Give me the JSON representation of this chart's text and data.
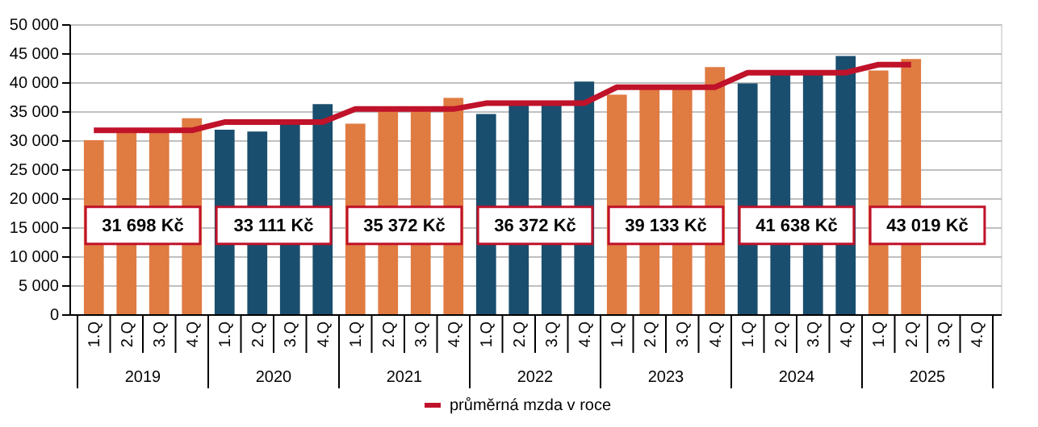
{
  "chart_data": {
    "type": "bar",
    "categories": [
      "1.Q",
      "2.Q",
      "3.Q",
      "4.Q",
      "1.Q",
      "2.Q",
      "3.Q",
      "4.Q",
      "1.Q",
      "2.Q",
      "3.Q",
      "4.Q",
      "1.Q",
      "2.Q",
      "3.Q",
      "4.Q",
      "1.Q",
      "2.Q",
      "3.Q",
      "4.Q",
      "1.Q",
      "2.Q",
      "3.Q",
      "4.Q",
      "1.Q",
      "2.Q",
      "3.Q",
      "4.Q"
    ],
    "series": [
      {
        "colors": [
          "#e07b42",
          "#e07b42",
          "#e07b42",
          "#e07b42",
          "#1a4e6e",
          "#1a4e6e",
          "#1a4e6e",
          "#1a4e6e",
          "#e07b42",
          "#e07b42",
          "#e07b42",
          "#e07b42",
          "#1a4e6e",
          "#1a4e6e",
          "#1a4e6e",
          "#1a4e6e",
          "#e07b42",
          "#e07b42",
          "#e07b42",
          "#e07b42",
          "#1a4e6e",
          "#1a4e6e",
          "#1a4e6e",
          "#1a4e6e",
          "#e07b42",
          "#e07b42",
          "#e07b42",
          "#e07b42"
        ],
        "values": [
          30000,
          31500,
          31600,
          33800,
          31800,
          31500,
          33000,
          36200,
          32850,
          35200,
          35200,
          37300,
          34500,
          36100,
          36300,
          40100,
          37850,
          39000,
          39000,
          42600,
          39800,
          41400,
          41600,
          44500,
          42000,
          44000,
          null,
          null
        ]
      },
      {
        "type": "line",
        "name": "průměrná mzda v roce",
        "color": "#c0122a",
        "values": [
          31698,
          31698,
          31698,
          31698,
          33111,
          33111,
          33111,
          33111,
          35372,
          35372,
          35372,
          35372,
          36372,
          36372,
          36372,
          36372,
          39133,
          39133,
          39133,
          39133,
          41638,
          41638,
          41638,
          41638,
          43019,
          43019,
          null,
          null
        ]
      }
    ],
    "annotations": [
      "31 698 Kč",
      "33 111 Kč",
      "35 372 Kč",
      "36 372 Kč",
      "39 133 Kč",
      "41 638 Kč",
      "43 019 Kč",
      "2019",
      "2020",
      "2021",
      "2022",
      "2023",
      "2024",
      "2025"
    ],
    "ylim": [
      0,
      50000
    ],
    "yticks": [
      0,
      {
        "value": 5000,
        "label": "5 000"
      },
      {
        "value": 10000,
        "label": "10 000"
      },
      {
        "value": 15000,
        "label": "15 000"
      },
      {
        "value": 20000,
        "label": "20 000"
      },
      {
        "value": 25000,
        "label": "25 000"
      },
      {
        "value": 30000,
        "label": "30 000"
      },
      {
        "value": 35000,
        "label": "35 000"
      },
      {
        "value": 40000,
        "label": "40 000"
      },
      {
        "value": 45000,
        "label": "45 000"
      },
      {
        "value": 50000,
        "label": "50 000"
      }
    ],
    "grid": "y",
    "legend": "bottom"
  }
}
